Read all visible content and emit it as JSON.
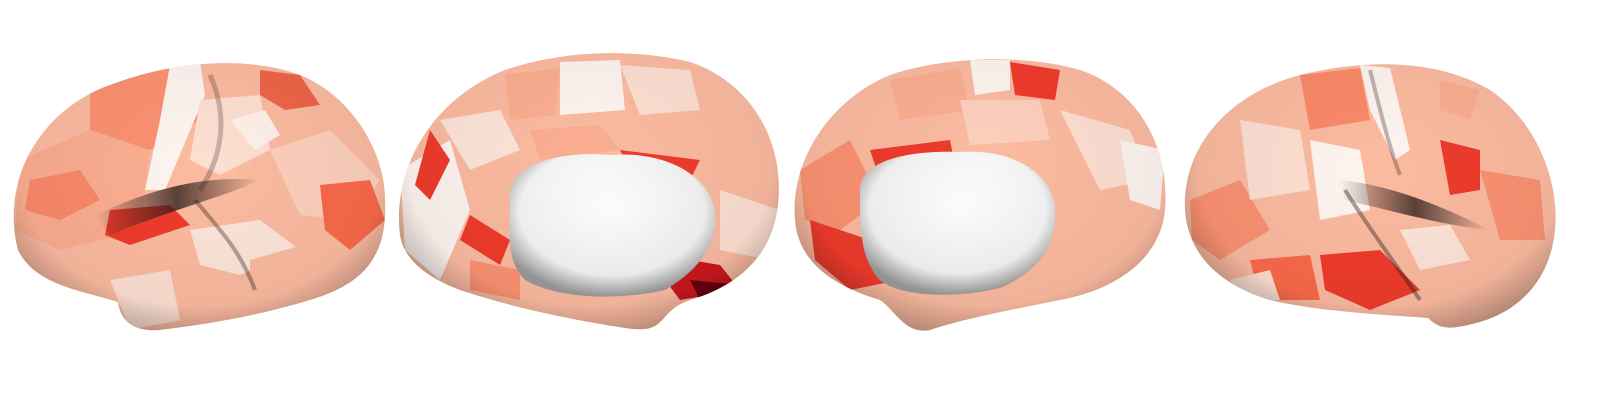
{
  "figure": {
    "views": [
      {
        "name": "left-hemisphere-lateral"
      },
      {
        "name": "left-hemisphere-medial"
      },
      {
        "name": "right-hemisphere-medial"
      },
      {
        "name": "right-hemisphere-lateral"
      }
    ],
    "colormap": {
      "name": "Reds",
      "stops": [
        "#fff5f0",
        "#fee0d2",
        "#fcbba1",
        "#fc9272",
        "#fb6a4a",
        "#ef3b2c",
        "#cb181d",
        "#a50f15",
        "#67000d"
      ]
    },
    "shading_color": "#3a2a28",
    "background": "#ffffff"
  }
}
